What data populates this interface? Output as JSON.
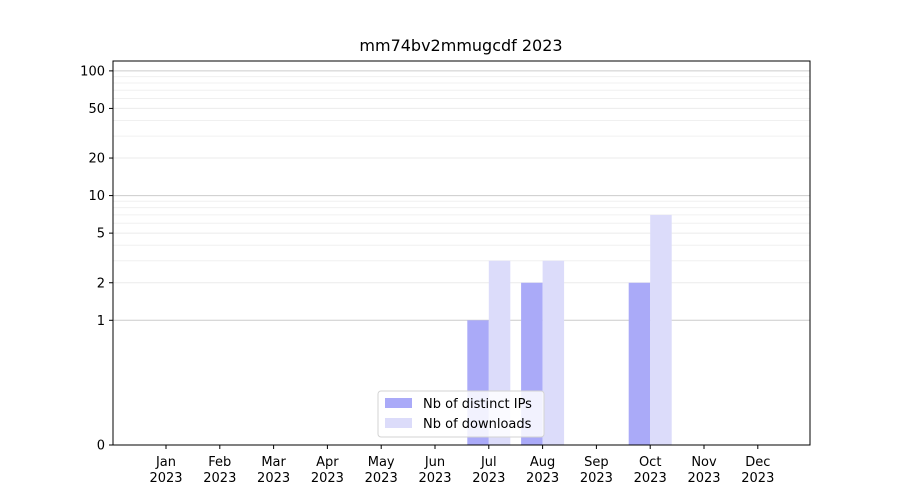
{
  "chart_data": {
    "type": "bar",
    "title": "mm74bv2mmugcdf 2023",
    "xlabel": "",
    "ylabel": "",
    "y_scale": "symlog",
    "ylim": [
      0,
      120
    ],
    "y_ticks": [
      0,
      1,
      2,
      5,
      10,
      20,
      50,
      100
    ],
    "grid": "horizontal",
    "legend_position": "bottom-center",
    "categories": [
      [
        "Jan",
        "2023"
      ],
      [
        "Feb",
        "2023"
      ],
      [
        "Mar",
        "2023"
      ],
      [
        "Apr",
        "2023"
      ],
      [
        "May",
        "2023"
      ],
      [
        "Jun",
        "2023"
      ],
      [
        "Jul",
        "2023"
      ],
      [
        "Aug",
        "2023"
      ],
      [
        "Sep",
        "2023"
      ],
      [
        "Oct",
        "2023"
      ],
      [
        "Nov",
        "2023"
      ],
      [
        "Dec",
        "2023"
      ]
    ],
    "series": [
      {
        "name": "Nb of distinct IPs",
        "color": "#aaaaf8",
        "values": [
          0,
          0,
          0,
          0,
          0,
          0,
          1,
          2,
          0,
          2,
          0,
          0
        ]
      },
      {
        "name": "Nb of downloads",
        "color": "#dcdcfa",
        "values": [
          0,
          0,
          0,
          0,
          0,
          0,
          3,
          3,
          0,
          7,
          0,
          0
        ]
      }
    ]
  }
}
